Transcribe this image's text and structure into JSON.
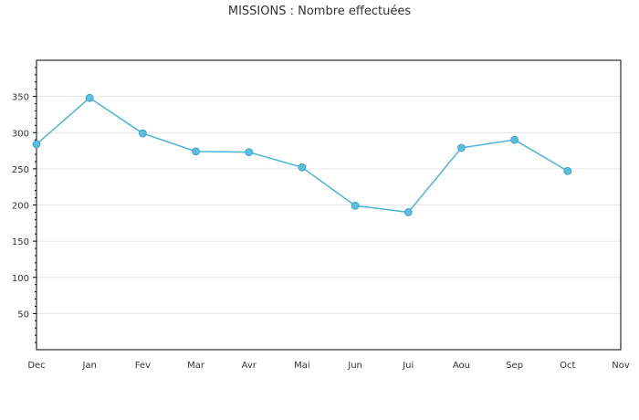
{
  "chart_data": {
    "type": "line",
    "title": "MISSIONS : Nombre effectuées",
    "categories": [
      "Dec",
      "Jan",
      "Fev",
      "Mar",
      "Avr",
      "Mai",
      "Jun",
      "Jui",
      "Aou",
      "Sep",
      "Oct",
      "Nov"
    ],
    "series": [
      {
        "values": [
          284,
          348,
          299,
          274,
          273,
          252,
          199,
          190,
          279,
          290,
          247,
          null
        ]
      }
    ],
    "yticks": [
      50,
      100,
      150,
      200,
      250,
      300,
      350
    ],
    "ylim": [
      0,
      400
    ],
    "grid": true,
    "xlabel": "",
    "ylabel": "",
    "colors": {
      "line": "#4ab5d8",
      "marker": "#58bfe0",
      "grid": "#e6e6e6",
      "axis": "#000000"
    }
  }
}
